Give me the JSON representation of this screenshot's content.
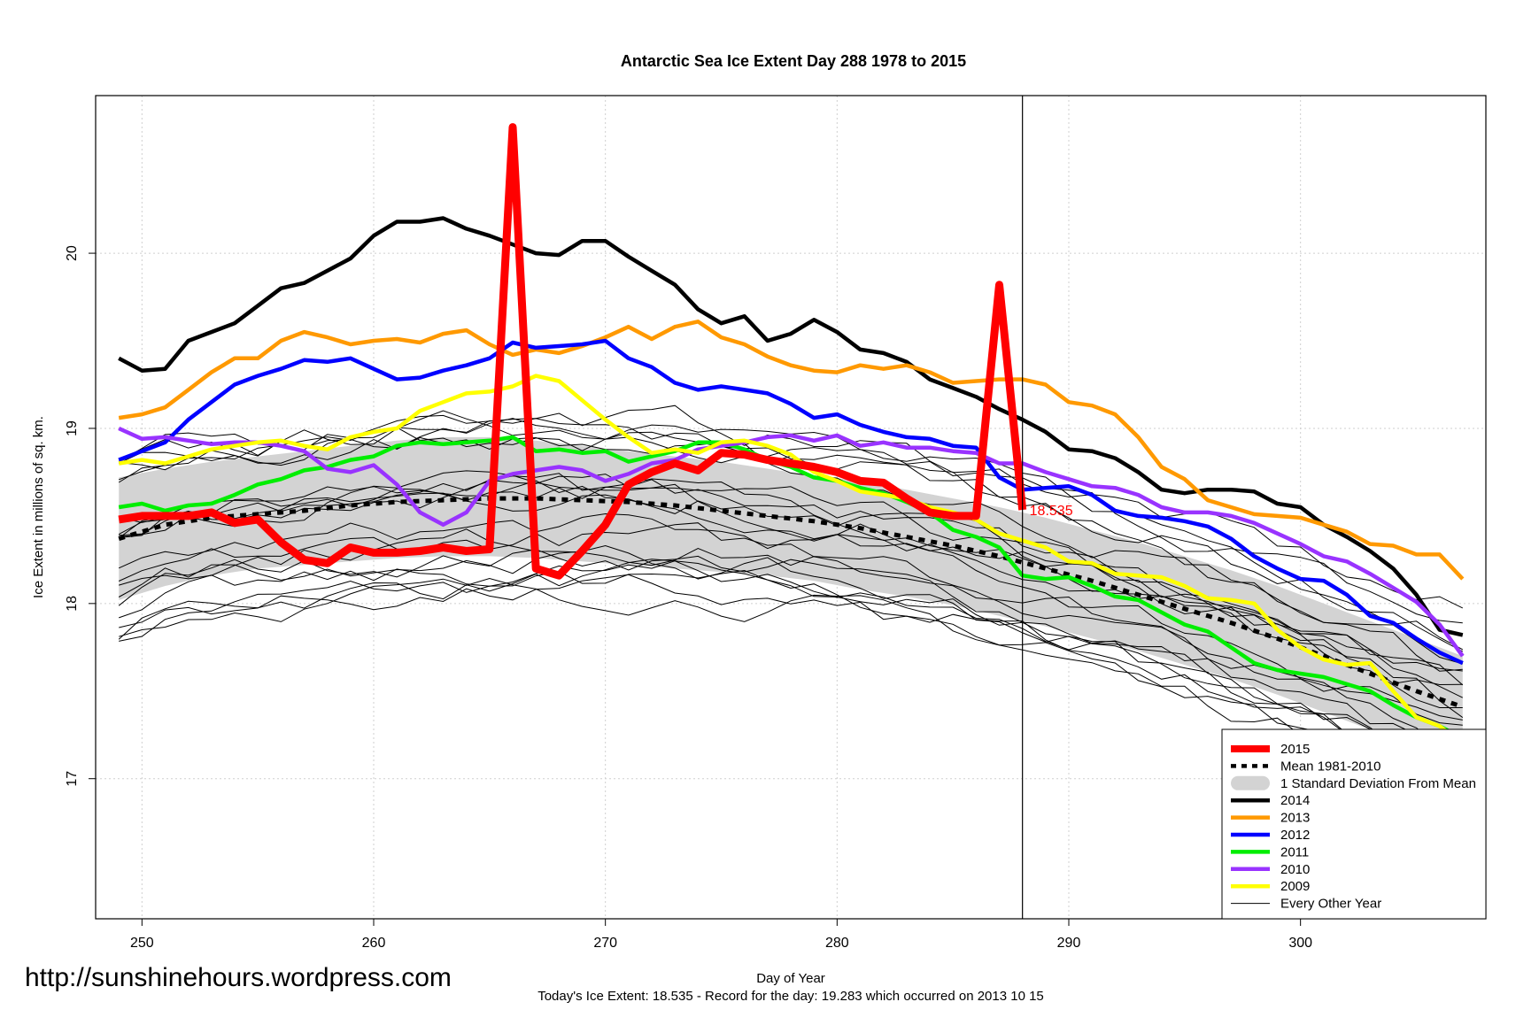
{
  "chart_data": {
    "type": "line",
    "title": "Antarctic Sea Ice Extent Day 288 1978 to 2015",
    "xlabel": "Day of Year",
    "ylabel": "Ice Extent in millions of sq. km.",
    "subtitle": "Today's Ice Extent: 18.535  - Record for the day: 19.283 which occurred on 2013 10 15",
    "watermark": "http://sunshinehours.wordpress.com",
    "xlim": [
      248,
      308
    ],
    "ylim": [
      16.2,
      20.9
    ],
    "xticks": [
      250,
      260,
      270,
      280,
      290,
      300
    ],
    "yticks": [
      17,
      18,
      19,
      20
    ],
    "grid": true,
    "legend_position": "bottom-right",
    "current_day": 288,
    "current_value_label": "18.535",
    "colors": {
      "2015": "#ff0000",
      "mean": "#000000",
      "band": "#d3d3d3",
      "2014": "#000000",
      "2013": "#ff9900",
      "2012": "#0000ff",
      "2011": "#00ee00",
      "2010": "#9933ff",
      "2009": "#ffff00",
      "other": "#000000"
    },
    "legend": [
      {
        "key": "2015",
        "label": "2015"
      },
      {
        "key": "mean",
        "label": "Mean 1981-2010"
      },
      {
        "key": "band",
        "label": "1 Standard Deviation From Mean"
      },
      {
        "key": "2014",
        "label": "2014"
      },
      {
        "key": "2013",
        "label": "2013"
      },
      {
        "key": "2012",
        "label": "2012"
      },
      {
        "key": "2011",
        "label": "2011"
      },
      {
        "key": "2010",
        "label": "2010"
      },
      {
        "key": "2009",
        "label": "2009"
      },
      {
        "key": "other",
        "label": "Every Other Year"
      }
    ],
    "mean": {
      "x": [
        249,
        251,
        253,
        255,
        257,
        259,
        261,
        263,
        265,
        267,
        269,
        271,
        273,
        275,
        277,
        279,
        281,
        283,
        285,
        287,
        289,
        291,
        293,
        295,
        297,
        299,
        301,
        303,
        305,
        307
      ],
      "y": [
        18.37,
        18.45,
        18.49,
        18.51,
        18.53,
        18.56,
        18.58,
        18.59,
        18.6,
        18.6,
        18.59,
        18.58,
        18.56,
        18.53,
        18.5,
        18.47,
        18.43,
        18.38,
        18.33,
        18.27,
        18.2,
        18.13,
        18.05,
        17.97,
        17.89,
        17.8,
        17.7,
        17.6,
        17.5,
        17.41
      ]
    },
    "band": {
      "x": [
        249,
        251,
        253,
        255,
        257,
        259,
        261,
        263,
        265,
        267,
        269,
        271,
        273,
        275,
        277,
        279,
        281,
        283,
        285,
        287,
        289,
        291,
        293,
        295,
        297,
        299,
        301,
        303,
        305,
        307
      ],
      "upper": [
        18.72,
        18.77,
        18.81,
        18.84,
        18.87,
        18.9,
        18.93,
        18.95,
        18.95,
        18.93,
        18.9,
        18.87,
        18.84,
        18.81,
        18.77,
        18.73,
        18.7,
        18.65,
        18.6,
        18.55,
        18.49,
        18.42,
        18.35,
        18.27,
        18.19,
        18.1,
        18.0,
        17.9,
        17.8,
        17.7
      ],
      "lower": [
        18.02,
        18.1,
        18.16,
        18.2,
        18.22,
        18.24,
        18.26,
        18.27,
        18.27,
        18.26,
        18.24,
        18.22,
        18.2,
        18.18,
        18.16,
        18.13,
        18.08,
        18.04,
        17.99,
        17.93,
        17.87,
        17.8,
        17.73,
        17.65,
        17.57,
        17.48,
        17.38,
        17.28,
        17.18,
        17.08
      ]
    },
    "series": [
      {
        "name": "2014",
        "key": "2014",
        "x": [
          249,
          250,
          251,
          252,
          253,
          254,
          255,
          256,
          257,
          258,
          259,
          260,
          261,
          262,
          263,
          264,
          265,
          266,
          267,
          268,
          269,
          270,
          271,
          272,
          273,
          274,
          275,
          276,
          277,
          278,
          279,
          280,
          281,
          282,
          283,
          284,
          285,
          286,
          287,
          288,
          289,
          290,
          291,
          292,
          293,
          294,
          295,
          296,
          297,
          298,
          299,
          300,
          301,
          302,
          303,
          304,
          305,
          306,
          307
        ],
        "y": [
          19.4,
          19.33,
          19.34,
          19.5,
          19.55,
          19.6,
          19.7,
          19.8,
          19.83,
          19.9,
          19.97,
          20.1,
          20.18,
          20.18,
          20.2,
          20.14,
          20.1,
          20.05,
          20.0,
          19.99,
          20.07,
          20.07,
          19.98,
          19.9,
          19.82,
          19.68,
          19.6,
          19.64,
          19.5,
          19.54,
          19.62,
          19.55,
          19.45,
          19.43,
          19.38,
          19.28,
          19.23,
          19.18,
          19.11,
          19.05,
          18.98,
          18.88,
          18.87,
          18.83,
          18.75,
          18.65,
          18.63,
          18.65,
          18.65,
          18.64,
          18.57,
          18.55,
          18.45,
          18.38,
          18.3,
          18.2,
          18.05,
          17.85,
          17.82
        ]
      },
      {
        "name": "2013",
        "key": "2013",
        "x": [
          249,
          250,
          251,
          252,
          253,
          254,
          255,
          256,
          257,
          258,
          259,
          260,
          261,
          262,
          263,
          264,
          265,
          266,
          267,
          268,
          269,
          270,
          271,
          272,
          273,
          274,
          275,
          276,
          277,
          278,
          279,
          280,
          281,
          282,
          283,
          284,
          285,
          286,
          287,
          288,
          289,
          290,
          291,
          292,
          293,
          294,
          295,
          296,
          297,
          298,
          299,
          300,
          301,
          302,
          303,
          304,
          305,
          306,
          307
        ],
        "y": [
          19.06,
          19.08,
          19.12,
          19.22,
          19.32,
          19.4,
          19.4,
          19.5,
          19.55,
          19.52,
          19.48,
          19.5,
          19.51,
          19.49,
          19.54,
          19.56,
          19.48,
          19.42,
          19.45,
          19.43,
          19.47,
          19.52,
          19.58,
          19.51,
          19.58,
          19.61,
          19.52,
          19.48,
          19.41,
          19.36,
          19.33,
          19.32,
          19.36,
          19.34,
          19.36,
          19.32,
          19.26,
          19.27,
          19.28,
          19.28,
          19.25,
          19.15,
          19.13,
          19.08,
          18.95,
          18.78,
          18.71,
          18.59,
          18.55,
          18.51,
          18.5,
          18.49,
          18.45,
          18.41,
          18.34,
          18.33,
          18.28,
          18.28,
          18.14
        ]
      },
      {
        "name": "2012",
        "key": "2012",
        "x": [
          249,
          250,
          251,
          252,
          253,
          254,
          255,
          256,
          257,
          258,
          259,
          260,
          261,
          262,
          263,
          264,
          265,
          266,
          267,
          268,
          269,
          270,
          271,
          272,
          273,
          274,
          275,
          276,
          277,
          278,
          279,
          280,
          281,
          282,
          283,
          284,
          285,
          286,
          287,
          288,
          289,
          290,
          291,
          292,
          293,
          294,
          295,
          296,
          297,
          298,
          299,
          300,
          301,
          302,
          303,
          304,
          305,
          306,
          307
        ],
        "y": [
          18.82,
          18.87,
          18.92,
          19.05,
          19.15,
          19.25,
          19.3,
          19.34,
          19.39,
          19.38,
          19.4,
          19.34,
          19.28,
          19.29,
          19.33,
          19.36,
          19.4,
          19.49,
          19.46,
          19.47,
          19.48,
          19.5,
          19.4,
          19.35,
          19.26,
          19.22,
          19.24,
          19.22,
          19.2,
          19.14,
          19.06,
          19.08,
          19.02,
          18.98,
          18.95,
          18.94,
          18.9,
          18.89,
          18.72,
          18.65,
          18.66,
          18.67,
          18.62,
          18.53,
          18.5,
          18.49,
          18.47,
          18.44,
          18.37,
          18.27,
          18.2,
          18.14,
          18.13,
          18.05,
          17.93,
          17.89,
          17.8,
          17.72,
          17.66
        ]
      },
      {
        "name": "2011",
        "key": "2011",
        "x": [
          249,
          250,
          251,
          252,
          253,
          254,
          255,
          256,
          257,
          258,
          259,
          260,
          261,
          262,
          263,
          264,
          265,
          266,
          267,
          268,
          269,
          270,
          271,
          272,
          273,
          274,
          275,
          276,
          277,
          278,
          279,
          280,
          281,
          282,
          283,
          284,
          285,
          286,
          287,
          288,
          289,
          290,
          291,
          292,
          293,
          294,
          295,
          296,
          297,
          298,
          299,
          300,
          301,
          302,
          303,
          304,
          305,
          306,
          307
        ],
        "y": [
          18.55,
          18.57,
          18.53,
          18.56,
          18.57,
          18.62,
          18.68,
          18.71,
          18.76,
          18.78,
          18.82,
          18.84,
          18.9,
          18.92,
          18.91,
          18.92,
          18.93,
          18.95,
          18.87,
          18.88,
          18.86,
          18.87,
          18.81,
          18.84,
          18.87,
          18.92,
          18.92,
          18.88,
          18.82,
          18.78,
          18.72,
          18.7,
          18.66,
          18.63,
          18.58,
          18.52,
          18.42,
          18.38,
          18.32,
          18.16,
          18.14,
          18.15,
          18.1,
          18.04,
          18.02,
          17.95,
          17.88,
          17.84,
          17.75,
          17.66,
          17.62,
          17.6,
          17.58,
          17.54,
          17.5,
          17.42,
          17.35,
          17.3,
          17.23
        ]
      },
      {
        "name": "2010",
        "key": "2010",
        "x": [
          249,
          250,
          251,
          252,
          253,
          254,
          255,
          256,
          257,
          258,
          259,
          260,
          261,
          262,
          263,
          264,
          265,
          266,
          267,
          268,
          269,
          270,
          271,
          272,
          273,
          274,
          275,
          276,
          277,
          278,
          279,
          280,
          281,
          282,
          283,
          284,
          285,
          286,
          287,
          288,
          289,
          290,
          291,
          292,
          293,
          294,
          295,
          296,
          297,
          298,
          299,
          300,
          301,
          302,
          303,
          304,
          305,
          306,
          307
        ],
        "y": [
          19.0,
          18.94,
          18.95,
          18.93,
          18.91,
          18.92,
          18.92,
          18.9,
          18.87,
          18.77,
          18.75,
          18.79,
          18.68,
          18.52,
          18.45,
          18.52,
          18.7,
          18.74,
          18.76,
          18.78,
          18.76,
          18.7,
          18.74,
          18.8,
          18.82,
          18.88,
          18.9,
          18.92,
          18.95,
          18.96,
          18.93,
          18.96,
          18.9,
          18.92,
          18.89,
          18.89,
          18.87,
          18.86,
          18.8,
          18.8,
          18.75,
          18.71,
          18.67,
          18.66,
          18.62,
          18.55,
          18.52,
          18.52,
          18.5,
          18.46,
          18.4,
          18.34,
          18.27,
          18.24,
          18.17,
          18.09,
          18.01,
          17.88,
          17.7
        ]
      },
      {
        "name": "2009",
        "key": "2009",
        "x": [
          249,
          250,
          251,
          252,
          253,
          254,
          255,
          256,
          257,
          258,
          259,
          260,
          261,
          262,
          263,
          264,
          265,
          266,
          267,
          268,
          269,
          270,
          271,
          272,
          273,
          274,
          275,
          276,
          277,
          278,
          279,
          280,
          281,
          282,
          283,
          284,
          285,
          286,
          287,
          288,
          289,
          290,
          291,
          292,
          293,
          294,
          295,
          296,
          297,
          298,
          299,
          300,
          301,
          302,
          303,
          304,
          305,
          306,
          307
        ],
        "y": [
          18.8,
          18.82,
          18.8,
          18.84,
          18.88,
          18.9,
          18.92,
          18.93,
          18.9,
          18.88,
          18.95,
          18.98,
          19.0,
          19.1,
          19.15,
          19.2,
          19.21,
          19.24,
          19.3,
          19.27,
          19.16,
          19.05,
          18.95,
          18.86,
          18.88,
          18.86,
          18.92,
          18.93,
          18.9,
          18.85,
          18.75,
          18.7,
          18.64,
          18.62,
          18.6,
          18.55,
          18.52,
          18.48,
          18.4,
          18.36,
          18.32,
          18.24,
          18.23,
          18.17,
          18.16,
          18.15,
          18.1,
          18.03,
          18.02,
          18.0,
          17.85,
          17.75,
          17.68,
          17.65,
          17.66,
          17.5,
          17.35,
          17.3,
          17.2
        ]
      },
      {
        "name": "2015",
        "key": "2015",
        "x": [
          249,
          250,
          251,
          252,
          253,
          254,
          255,
          256,
          257,
          258,
          259,
          260,
          261,
          262,
          263,
          264,
          265,
          266,
          267,
          268,
          269,
          270,
          271,
          272,
          273,
          274,
          275,
          276,
          277,
          278,
          279,
          280,
          281,
          282,
          283,
          284,
          285,
          286,
          287,
          288
        ],
        "y": [
          18.48,
          18.5,
          18.5,
          18.5,
          18.52,
          18.46,
          18.48,
          18.35,
          18.25,
          18.23,
          18.32,
          18.29,
          18.29,
          18.3,
          18.32,
          18.3,
          18.31,
          20.72,
          18.2,
          18.16,
          18.3,
          18.45,
          18.68,
          18.75,
          18.8,
          18.76,
          18.86,
          18.85,
          18.82,
          18.8,
          18.78,
          18.75,
          18.7,
          18.69,
          18.6,
          18.52,
          18.5,
          18.5,
          19.82,
          18.535
        ]
      }
    ]
  }
}
